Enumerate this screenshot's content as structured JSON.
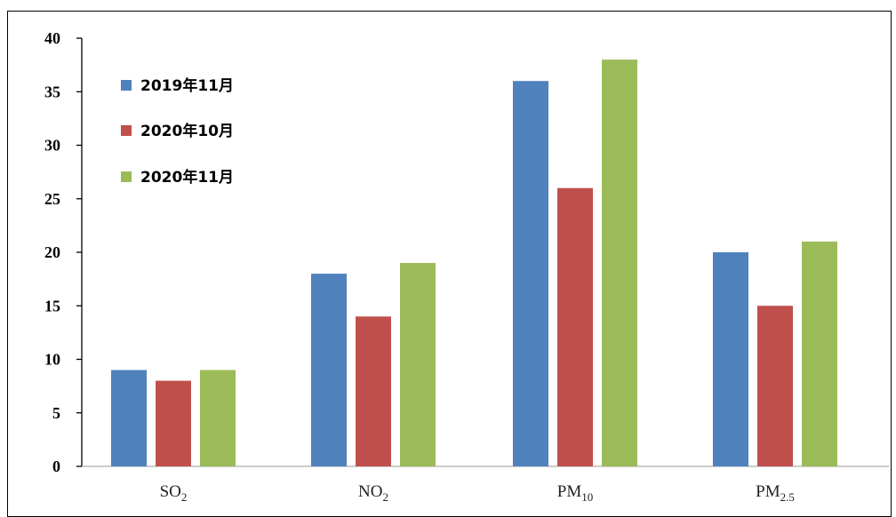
{
  "chart_data": {
    "type": "bar",
    "categories": [
      {
        "base": "SO",
        "sub": "2"
      },
      {
        "base": "NO",
        "sub": "2"
      },
      {
        "base": "PM",
        "sub": "10"
      },
      {
        "base": "PM",
        "sub": "2.5"
      }
    ],
    "series": [
      {
        "name": "2019年11月",
        "color": "#4f81bd",
        "values": [
          9,
          18,
          36,
          20
        ]
      },
      {
        "name": "2020年10月",
        "color": "#c0504d",
        "values": [
          8,
          14,
          26,
          15
        ]
      },
      {
        "name": "2020年11月",
        "color": "#9bbb59",
        "values": [
          9,
          19,
          38,
          21
        ]
      }
    ],
    "ylim": [
      0,
      40
    ],
    "yticks": [
      "0",
      "5",
      "10",
      "15",
      "20",
      "25",
      "30",
      "35",
      "40"
    ],
    "legend_position": "top-left",
    "grid": false
  }
}
